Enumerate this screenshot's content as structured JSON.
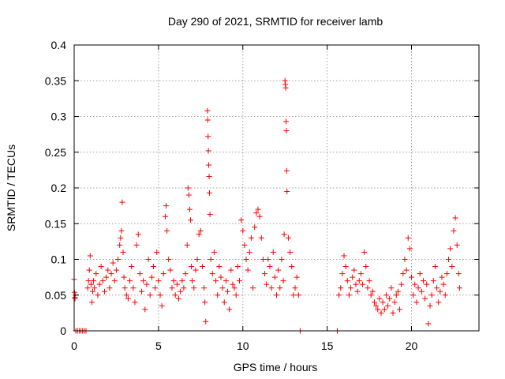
{
  "chart_data": {
    "type": "scatter",
    "title": "Day 290 of 2021, SRMTID for receiver lamb",
    "xlabel": "GPS time / hours",
    "ylabel": "SRMTID / TECUs",
    "xlim": [
      0,
      24
    ],
    "ylim": [
      0,
      0.4
    ],
    "xticks": [
      0,
      5,
      10,
      15,
      20
    ],
    "xtick_labels": [
      "0",
      "5",
      "10",
      "15",
      "20"
    ],
    "yticks": [
      0,
      0.05,
      0.1,
      0.15,
      0.2,
      0.25,
      0.3,
      0.35,
      0.4
    ],
    "ytick_labels": [
      "0",
      "0.05",
      "0.1",
      "0.15",
      "0.2",
      "0.25",
      "0.3",
      "0.35",
      "0.4"
    ],
    "grid": true,
    "marker": "plus",
    "color": "#ff0000",
    "series": [
      {
        "name": "SRMTID",
        "points": [
          [
            0.0,
            0.072
          ],
          [
            0.02,
            0.054
          ],
          [
            0.04,
            0.047
          ],
          [
            0.06,
            0.05
          ],
          [
            0.05,
            0.045
          ],
          [
            0.1,
            0.0
          ],
          [
            0.2,
            0.0
          ],
          [
            0.3,
            0.0
          ],
          [
            0.4,
            0.0
          ],
          [
            0.5,
            0.0
          ],
          [
            0.6,
            0.0
          ],
          [
            0.7,
            0.0
          ],
          [
            0.8,
            0.06
          ],
          [
            0.85,
            0.07
          ],
          [
            0.9,
            0.085
          ],
          [
            0.95,
            0.105
          ],
          [
            1.0,
            0.065
          ],
          [
            1.05,
            0.04
          ],
          [
            1.1,
            0.055
          ],
          [
            1.15,
            0.07
          ],
          [
            1.2,
            0.06
          ],
          [
            1.3,
            0.08
          ],
          [
            1.4,
            0.05
          ],
          [
            1.5,
            0.065
          ],
          [
            1.6,
            0.09
          ],
          [
            1.7,
            0.07
          ],
          [
            1.8,
            0.055
          ],
          [
            1.9,
            0.075
          ],
          [
            2.0,
            0.085
          ],
          [
            2.1,
            0.06
          ],
          [
            2.2,
            0.08
          ],
          [
            2.3,
            0.095
          ],
          [
            2.4,
            0.07
          ],
          [
            2.5,
            0.085
          ],
          [
            2.6,
            0.1
          ],
          [
            2.7,
            0.12
          ],
          [
            2.75,
            0.13
          ],
          [
            2.8,
            0.14
          ],
          [
            2.85,
            0.18
          ],
          [
            2.9,
            0.11
          ],
          [
            2.95,
            0.075
          ],
          [
            3.0,
            0.06
          ],
          [
            3.1,
            0.05
          ],
          [
            3.2,
            0.045
          ],
          [
            3.3,
            0.07
          ],
          [
            3.4,
            0.09
          ],
          [
            3.5,
            0.06
          ],
          [
            3.6,
            0.04
          ],
          [
            3.7,
            0.12
          ],
          [
            3.8,
            0.135
          ],
          [
            3.9,
            0.08
          ],
          [
            4.0,
            0.055
          ],
          [
            4.1,
            0.07
          ],
          [
            4.2,
            0.03
          ],
          [
            4.3,
            0.065
          ],
          [
            4.4,
            0.1
          ],
          [
            4.5,
            0.05
          ],
          [
            4.6,
            0.075
          ],
          [
            4.7,
            0.09
          ],
          [
            4.8,
            0.06
          ],
          [
            4.9,
            0.11
          ],
          [
            5.0,
            0.07
          ],
          [
            5.1,
            0.05
          ],
          [
            5.2,
            0.035
          ],
          [
            5.3,
            0.08
          ],
          [
            5.4,
            0.16
          ],
          [
            5.45,
            0.175
          ],
          [
            5.5,
            0.14
          ],
          [
            5.6,
            0.1
          ],
          [
            5.7,
            0.085
          ],
          [
            5.8,
            0.06
          ],
          [
            5.9,
            0.07
          ],
          [
            6.0,
            0.05
          ],
          [
            6.1,
            0.065
          ],
          [
            6.2,
            0.045
          ],
          [
            6.3,
            0.055
          ],
          [
            6.4,
            0.07
          ],
          [
            6.5,
            0.06
          ],
          [
            6.6,
            0.08
          ],
          [
            6.7,
            0.12
          ],
          [
            6.75,
            0.2
          ],
          [
            6.8,
            0.19
          ],
          [
            6.85,
            0.17
          ],
          [
            6.9,
            0.155
          ],
          [
            6.95,
            0.09
          ],
          [
            7.0,
            0.07
          ],
          [
            7.1,
            0.06
          ],
          [
            7.2,
            0.085
          ],
          [
            7.3,
            0.1
          ],
          [
            7.4,
            0.135
          ],
          [
            7.5,
            0.14
          ],
          [
            7.6,
            0.09
          ],
          [
            7.7,
            0.06
          ],
          [
            7.75,
            0.04
          ],
          [
            7.8,
            0.013
          ],
          [
            7.9,
            0.308
          ],
          [
            7.92,
            0.295
          ],
          [
            7.94,
            0.272
          ],
          [
            7.96,
            0.252
          ],
          [
            7.98,
            0.232
          ],
          [
            8.0,
            0.216
          ],
          [
            8.02,
            0.193
          ],
          [
            8.05,
            0.163
          ],
          [
            8.1,
            0.1
          ],
          [
            8.2,
            0.08
          ],
          [
            8.3,
            0.11
          ],
          [
            8.4,
            0.07
          ],
          [
            8.5,
            0.05
          ],
          [
            8.6,
            0.09
          ],
          [
            8.7,
            0.075
          ],
          [
            8.8,
            0.06
          ],
          [
            8.9,
            0.04
          ],
          [
            9.0,
            0.07
          ],
          [
            9.1,
            0.055
          ],
          [
            9.2,
            0.03
          ],
          [
            9.3,
            0.085
          ],
          [
            9.4,
            0.065
          ],
          [
            9.5,
            0.06
          ],
          [
            9.6,
            0.05
          ],
          [
            9.7,
            0.09
          ],
          [
            9.8,
            0.07
          ],
          [
            9.9,
            0.155
          ],
          [
            10.0,
            0.14
          ],
          [
            10.1,
            0.12
          ],
          [
            10.2,
            0.1
          ],
          [
            10.3,
            0.085
          ],
          [
            10.4,
            0.11
          ],
          [
            10.5,
            0.13
          ],
          [
            10.6,
            0.06
          ],
          [
            10.7,
            0.145
          ],
          [
            10.8,
            0.165
          ],
          [
            10.9,
            0.17
          ],
          [
            11.0,
            0.16
          ],
          [
            11.1,
            0.13
          ],
          [
            11.2,
            0.1
          ],
          [
            11.3,
            0.08
          ],
          [
            11.4,
            0.065
          ],
          [
            11.5,
            0.1
          ],
          [
            11.6,
            0.09
          ],
          [
            11.7,
            0.06
          ],
          [
            11.8,
            0.11
          ],
          [
            11.9,
            0.075
          ],
          [
            12.0,
            0.05
          ],
          [
            12.1,
            0.085
          ],
          [
            12.2,
            0.06
          ],
          [
            12.3,
            0.1
          ],
          [
            12.4,
            0.07
          ],
          [
            12.45,
            0.135
          ],
          [
            12.5,
            0.35
          ],
          [
            12.52,
            0.345
          ],
          [
            12.54,
            0.34
          ],
          [
            12.56,
            0.293
          ],
          [
            12.58,
            0.28
          ],
          [
            12.6,
            0.224
          ],
          [
            12.62,
            0.195
          ],
          [
            12.7,
            0.13
          ],
          [
            12.8,
            0.11
          ],
          [
            12.9,
            0.09
          ],
          [
            13.0,
            0.05
          ],
          [
            13.1,
            0.06
          ],
          [
            13.2,
            0.075
          ],
          [
            13.3,
            0.05
          ],
          [
            13.4,
            0.0
          ],
          [
            15.6,
            0.0
          ],
          [
            15.7,
            0.05
          ],
          [
            15.8,
            0.06
          ],
          [
            15.9,
            0.08
          ],
          [
            16.0,
            0.105
          ],
          [
            16.1,
            0.09
          ],
          [
            16.2,
            0.07
          ],
          [
            16.3,
            0.05
          ],
          [
            16.4,
            0.06
          ],
          [
            16.5,
            0.075
          ],
          [
            16.6,
            0.085
          ],
          [
            16.7,
            0.065
          ],
          [
            16.8,
            0.055
          ],
          [
            16.9,
            0.07
          ],
          [
            17.0,
            0.08
          ],
          [
            17.1,
            0.065
          ],
          [
            17.2,
            0.11
          ],
          [
            17.3,
            0.09
          ],
          [
            17.4,
            0.06
          ],
          [
            17.5,
            0.07
          ],
          [
            17.6,
            0.05
          ],
          [
            17.7,
            0.055
          ],
          [
            17.8,
            0.04
          ],
          [
            17.9,
            0.035
          ],
          [
            18.0,
            0.03
          ],
          [
            18.1,
            0.045
          ],
          [
            18.2,
            0.025
          ],
          [
            18.3,
            0.04
          ],
          [
            18.4,
            0.03
          ],
          [
            18.5,
            0.05
          ],
          [
            18.6,
            0.035
          ],
          [
            18.7,
            0.045
          ],
          [
            18.8,
            0.06
          ],
          [
            18.9,
            0.025
          ],
          [
            19.0,
            0.04
          ],
          [
            19.1,
            0.05
          ],
          [
            19.2,
            0.055
          ],
          [
            19.3,
            0.03
          ],
          [
            19.4,
            0.065
          ],
          [
            19.5,
            0.08
          ],
          [
            19.6,
            0.1
          ],
          [
            19.7,
            0.085
          ],
          [
            19.8,
            0.13
          ],
          [
            19.9,
            0.115
          ],
          [
            20.0,
            0.075
          ],
          [
            20.1,
            0.05
          ],
          [
            20.2,
            0.065
          ],
          [
            20.3,
            0.04
          ],
          [
            20.4,
            0.06
          ],
          [
            20.5,
            0.08
          ],
          [
            20.6,
            0.055
          ],
          [
            20.7,
            0.07
          ],
          [
            20.8,
            0.045
          ],
          [
            20.9,
            0.065
          ],
          [
            21.0,
            0.01
          ],
          [
            21.1,
            0.035
          ],
          [
            21.2,
            0.05
          ],
          [
            21.3,
            0.07
          ],
          [
            21.4,
            0.09
          ],
          [
            21.5,
            0.06
          ],
          [
            21.6,
            0.04
          ],
          [
            21.7,
            0.055
          ],
          [
            21.8,
            0.075
          ],
          [
            21.9,
            0.065
          ],
          [
            22.0,
            0.05
          ],
          [
            22.1,
            0.08
          ],
          [
            22.2,
            0.1
          ],
          [
            22.3,
            0.115
          ],
          [
            22.4,
            0.09
          ],
          [
            22.5,
            0.14
          ],
          [
            22.6,
            0.158
          ],
          [
            22.7,
            0.12
          ],
          [
            22.8,
            0.08
          ],
          [
            22.85,
            0.06
          ]
        ]
      }
    ]
  }
}
